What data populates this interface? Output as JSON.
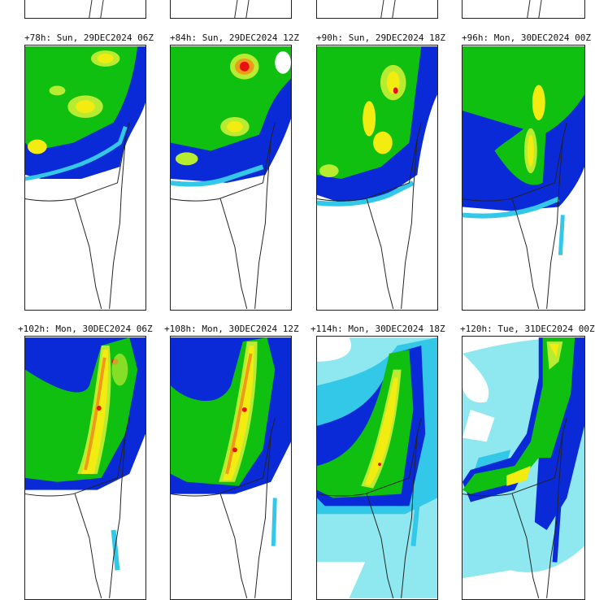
{
  "panels": [
    {
      "label": "+78h: Sun, 29DEC2024 06Z"
    },
    {
      "label": "+84h: Sun, 29DEC2024 12Z"
    },
    {
      "label": "+90h: Sun, 29DEC2024 18Z"
    },
    {
      "label": "+96h: Mon, 30DEC2024 00Z"
    },
    {
      "label": "+102h: Mon, 30DEC2024 06Z"
    },
    {
      "label": "+108h: Mon, 30DEC2024 12Z"
    },
    {
      "label": "+114h: Mon, 30DEC2024 18Z"
    },
    {
      "label": "+120h: Tue, 31DEC2024 00Z"
    }
  ],
  "colors": {
    "light_cyan": "#8fe8f0",
    "cyan": "#33c8e8",
    "blue": "#0a2ad8",
    "green": "#10c010",
    "light_green": "#b8ec30",
    "yellow": "#f2ec10",
    "orange": "#f09a1a",
    "red": "#e81010"
  }
}
